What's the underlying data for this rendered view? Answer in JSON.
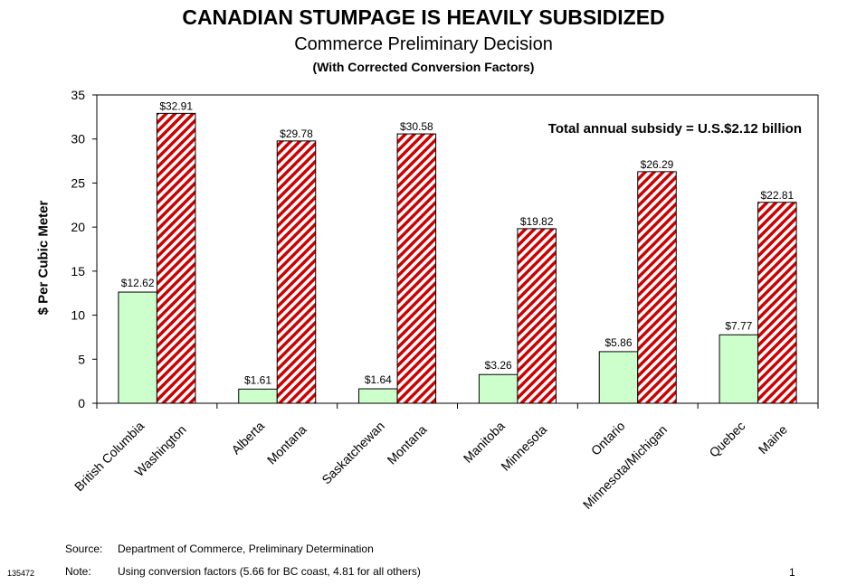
{
  "title": "CANADIAN STUMPAGE IS HEAVILY SUBSIDIZED",
  "subtitle": "Commerce Preliminary Decision",
  "subtitle2": "(With Corrected Conversion Factors)",
  "annotation": "Total annual subsidy = U.S.$2.12 billion",
  "source_label": "Source:",
  "source_text": "Department of Commerce, Preliminary Determination",
  "note_label": "Note:",
  "note_text": "Using conversion factors (5.66 for BC coast, 4.81 for all others)",
  "doc_id": "135472",
  "page_number": "1",
  "colors": {
    "canada_fill": "#ccffcc",
    "us_stripe": "#cc0000",
    "us_background": "#ffffff"
  },
  "chart_data": {
    "type": "bar",
    "title": "CANADIAN STUMPAGE IS HEAVILY SUBSIDIZED",
    "ylabel": "$ Per Cubic Meter",
    "xlabel": "",
    "ylim": [
      0,
      35
    ],
    "yticks": [
      0,
      5,
      10,
      15,
      20,
      25,
      30,
      35
    ],
    "grid": false,
    "legend": "none",
    "pairs": [
      {
        "canada": "British Columbia",
        "canada_value": 12.62,
        "canada_label": "$12.62",
        "us": "Washington",
        "us_value": 32.91,
        "us_label": "$32.91"
      },
      {
        "canada": "Alberta",
        "canada_value": 1.61,
        "canada_label": "$1.61",
        "us": "Montana",
        "us_value": 29.78,
        "us_label": "$29.78"
      },
      {
        "canada": "Saskatchewan",
        "canada_value": 1.64,
        "canada_label": "$1.64",
        "us": "Montana",
        "us_value": 30.58,
        "us_label": "$30.58"
      },
      {
        "canada": "Manitoba",
        "canada_value": 3.26,
        "canada_label": "$3.26",
        "us": "Minnesota",
        "us_value": 19.82,
        "us_label": "$19.82"
      },
      {
        "canada": "Ontario",
        "canada_value": 5.86,
        "canada_label": "$5.86",
        "us": "Minnesota/Michigan",
        "us_value": 26.29,
        "us_label": "$26.29"
      },
      {
        "canada": "Quebec",
        "canada_value": 7.77,
        "canada_label": "$7.77",
        "us": "Maine",
        "us_value": 22.81,
        "us_label": "$22.81"
      }
    ]
  }
}
